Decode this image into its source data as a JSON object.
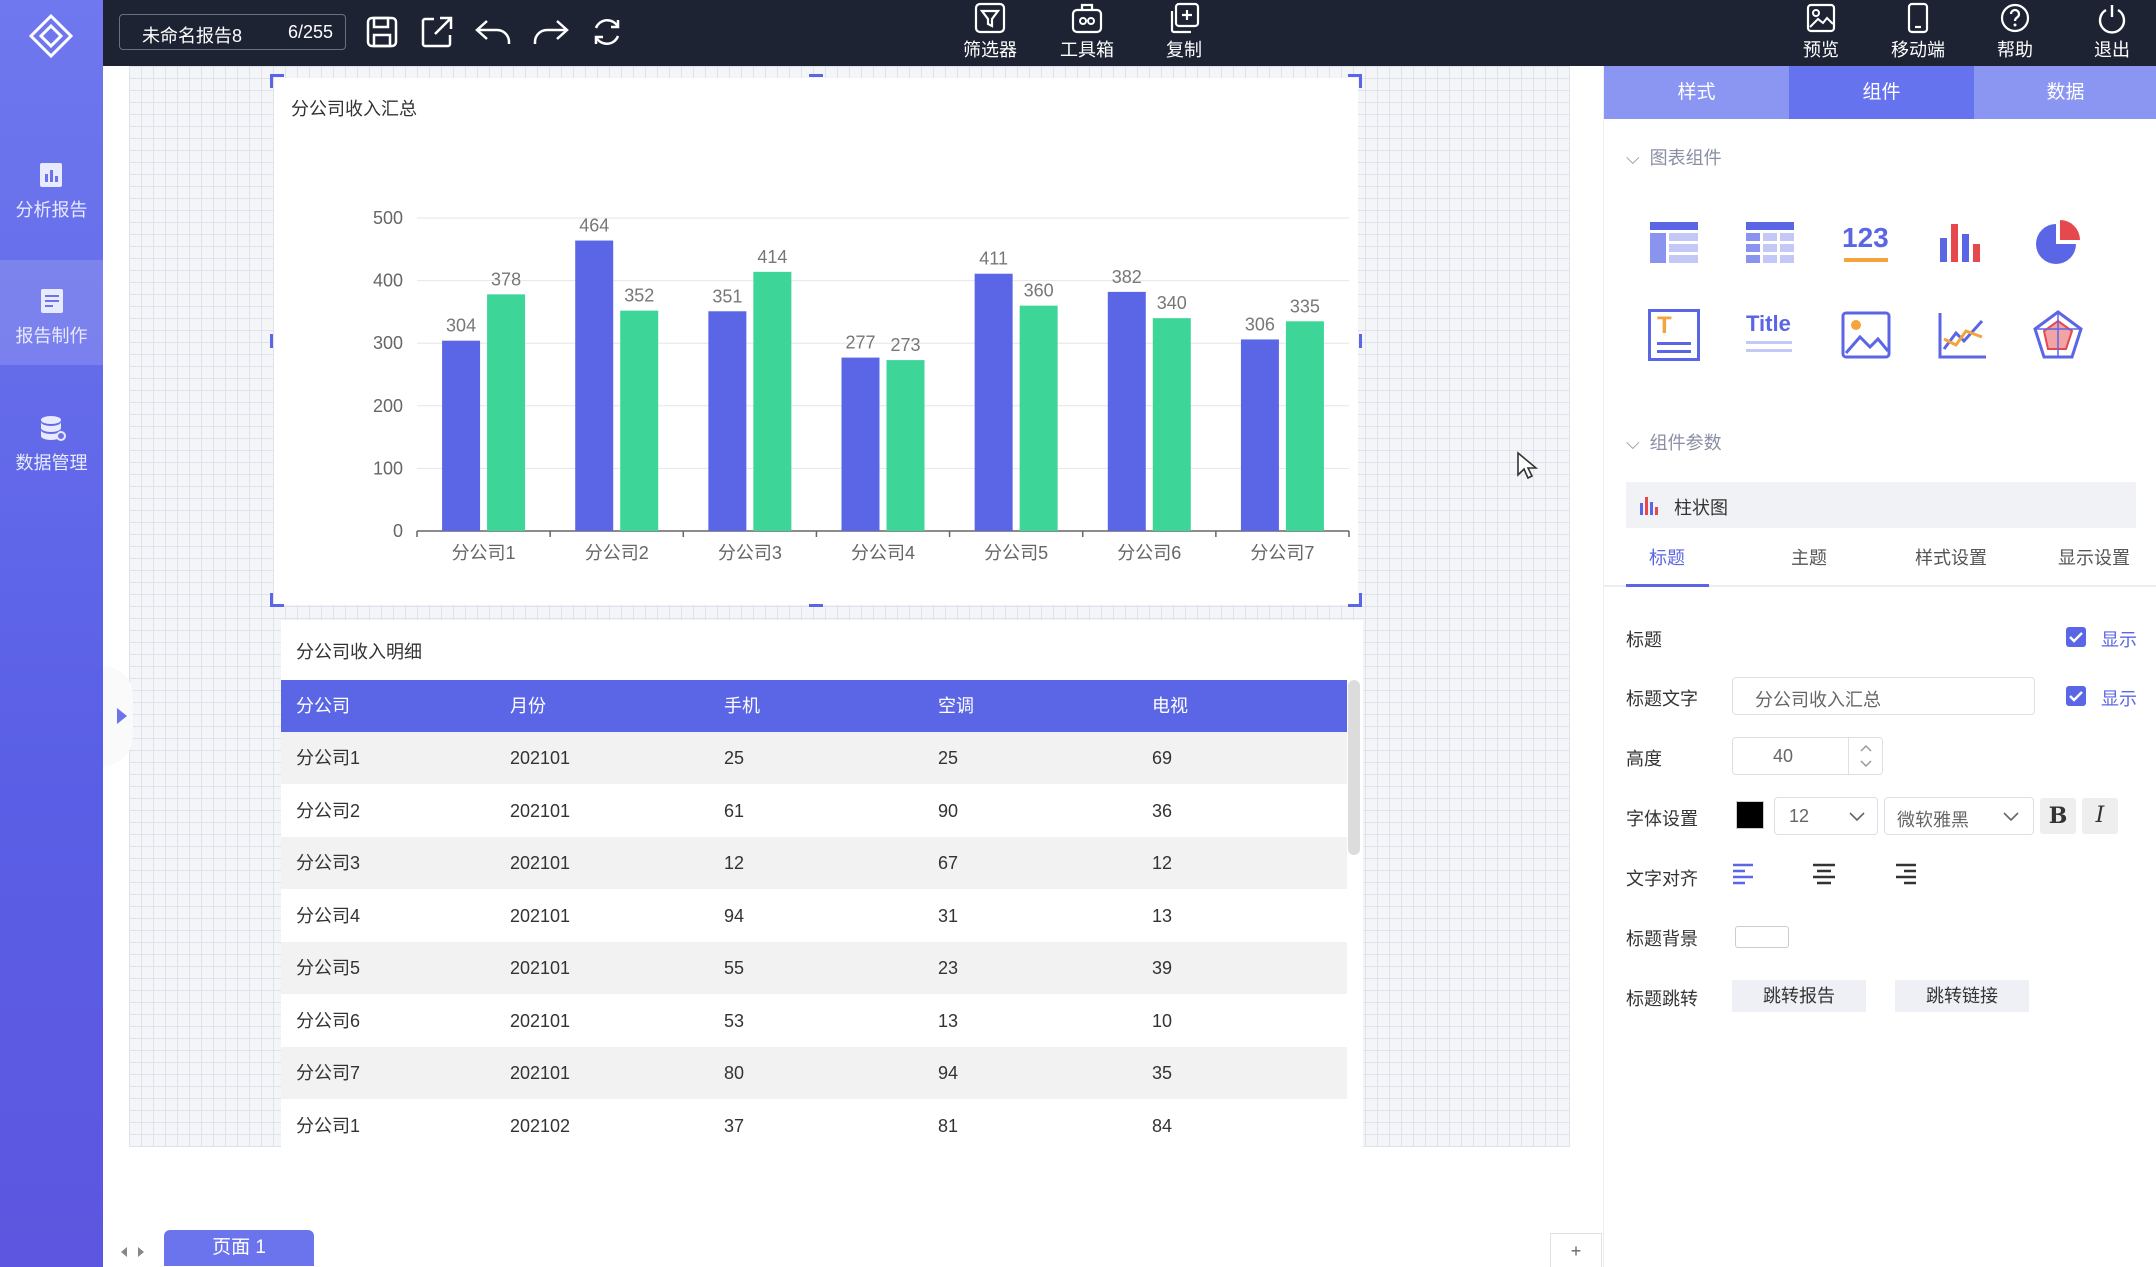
{
  "sidebar": {
    "items": [
      {
        "label": "分析报告"
      },
      {
        "label": "报告制作"
      },
      {
        "label": "数据管理"
      }
    ]
  },
  "topbar": {
    "report_name": "未命名报告8",
    "report_count": "6/255",
    "center": [
      {
        "label": "筛选器"
      },
      {
        "label": "工具箱"
      },
      {
        "label": "复制"
      }
    ],
    "right": [
      {
        "label": "预览"
      },
      {
        "label": "移动端"
      },
      {
        "label": "帮助"
      },
      {
        "label": "退出"
      }
    ]
  },
  "chart_card": {
    "title": "分公司收入汇总"
  },
  "chart_data": {
    "type": "bar",
    "title": "分公司收入汇总",
    "categories": [
      "分公司1",
      "分公司2",
      "分公司3",
      "分公司4",
      "分公司5",
      "分公司6",
      "分公司7"
    ],
    "series": [
      {
        "values": [
          304,
          464,
          351,
          277,
          411,
          382,
          306
        ],
        "color": "#5b66e6"
      },
      {
        "values": [
          378,
          352,
          414,
          273,
          360,
          340,
          335
        ],
        "color": "#3dd598"
      }
    ],
    "ylim": [
      0,
      500
    ],
    "yticks": [
      0,
      100,
      200,
      300,
      400,
      500
    ],
    "grid": true
  },
  "table_card": {
    "title": "分公司收入明细",
    "columns": [
      "分公司",
      "月份",
      "手机",
      "空调",
      "电视"
    ],
    "rows": [
      [
        "分公司1",
        "202101",
        "25",
        "25",
        "69"
      ],
      [
        "分公司2",
        "202101",
        "61",
        "90",
        "36"
      ],
      [
        "分公司3",
        "202101",
        "12",
        "67",
        "12"
      ],
      [
        "分公司4",
        "202101",
        "94",
        "31",
        "13"
      ],
      [
        "分公司5",
        "202101",
        "55",
        "23",
        "39"
      ],
      [
        "分公司6",
        "202101",
        "53",
        "13",
        "10"
      ],
      [
        "分公司7",
        "202101",
        "80",
        "94",
        "35"
      ],
      [
        "分公司1",
        "202102",
        "37",
        "81",
        "84"
      ]
    ]
  },
  "bottom": {
    "page_tab": "页面 1",
    "add_label": "+"
  },
  "panel": {
    "tabs": [
      "样式",
      "组件",
      "数据"
    ],
    "section_chart": "图表组件",
    "section_params": "组件参数",
    "component_icons": [
      "table-icon",
      "cross-table-icon",
      "number-card-icon",
      "bar-chart-icon",
      "pie-chart-icon",
      "text-icon",
      "title-icon",
      "image-icon",
      "line-chart-icon",
      "radar-chart-icon"
    ],
    "number_card_text": "123",
    "title_icon_text": "Title",
    "text_icon_text": "T",
    "bar_header": "柱状图",
    "subtabs": [
      "标题",
      "主题",
      "样式设置",
      "显示设置"
    ],
    "props": {
      "title_label": "标题",
      "show_label": "显示",
      "title_text_label": "标题文字",
      "title_text_value": "分公司收入汇总",
      "height_label": "高度",
      "height_value": "40",
      "font_label": "字体设置",
      "font_size": "12",
      "font_family": "微软雅黑",
      "bold": "B",
      "italic": "I",
      "align_label": "文字对齐",
      "bg_label": "标题背景",
      "jump_label": "标题跳转",
      "jump_report": "跳转报告",
      "jump_link": "跳转链接"
    }
  }
}
